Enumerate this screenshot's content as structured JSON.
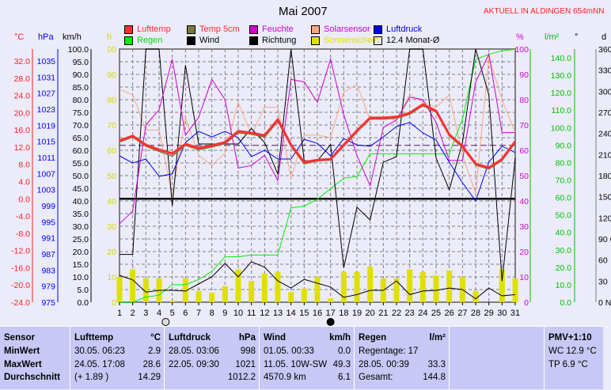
{
  "header": {
    "title": "Mai 2007",
    "station": "AKTUELL IN ALDINGEN 654mNN"
  },
  "legend": [
    {
      "label": "Lufttemp",
      "color": "#ff3030",
      "text_color": "#ff3030"
    },
    {
      "label": "Temp 5cm",
      "color": "#7a7a40",
      "text_color": "#ff3030"
    },
    {
      "label": "Feuchte",
      "color": "#d000d0",
      "text_color": "#d000d0"
    },
    {
      "label": "Solarsensor",
      "color": "#f8a880",
      "text_color": "#d000d0"
    },
    {
      "label": "Luftdruck",
      "color": "#0000f0",
      "text_color": "#0000f0"
    },
    {
      "label": "Regen",
      "color": "#00f000",
      "text_color": "#00e000"
    },
    {
      "label": "Wind",
      "color": "#000000",
      "text_color": "#000000"
    },
    {
      "label": "Richtung",
      "color": "#000000",
      "text_color": "#000000"
    },
    {
      "label": "Sonnenschein",
      "color": "#e0e000",
      "text_color": "#e0e000"
    },
    {
      "label": "12.4 Monat-Ø",
      "color": "none",
      "text_color": "#000000"
    }
  ],
  "axes": {
    "temp": {
      "unit": "°C",
      "color": "#ff2020",
      "ticks": [
        "32.0",
        "28.0",
        "24.0",
        "20.0",
        "16.0",
        "12.0",
        "8.0",
        "4.0",
        "0.0",
        "-4.0",
        "-8.0",
        "-12.0",
        "-16.0",
        "-20.0",
        "-24.0"
      ]
    },
    "pressure": {
      "unit": "hPa",
      "color": "#0000ff",
      "ticks": [
        "1035",
        "1031",
        "1027",
        "1023",
        "1019",
        "1015",
        "1011",
        "1007",
        "1003",
        "999",
        "995",
        "991",
        "987",
        "983",
        "979",
        "975"
      ]
    },
    "wind": {
      "unit": "km/h",
      "color": "#000000",
      "ticks": [
        "100.0",
        "95.0",
        "90.0",
        "85.0",
        "80.0",
        "75.0",
        "70.0",
        "65.0",
        "60.0",
        "55.0",
        "50.0",
        "45.0",
        "40.0",
        "35.0",
        "30.0",
        "25.0",
        "20.0",
        "15.0",
        "10.0",
        "5.0",
        "0.0"
      ]
    },
    "sun": {
      "unit": "h",
      "color": "#d8d800",
      "ticks": [
        "100",
        "90",
        "80",
        "70",
        "60",
        "50",
        "40",
        "30",
        "20",
        "10",
        "0"
      ]
    },
    "humidity": {
      "unit": "%",
      "color": "#d000d0",
      "ticks": [
        "100",
        "90",
        "80",
        "70",
        "60",
        "50",
        "40",
        "30",
        "20",
        "10",
        "0"
      ]
    },
    "rain": {
      "unit": "l/m²",
      "color": "#00c000",
      "ticks": [
        "140.0",
        "130.0",
        "120.0",
        "110.0",
        "100.0",
        "90.0",
        "80.0",
        "70.0",
        "60.0",
        "50.0",
        "40.0",
        "30.0",
        "20.0",
        "10.0",
        "0.0"
      ]
    },
    "direction": {
      "unit": "°",
      "unit2": "d",
      "color": "#000000",
      "ticks": [
        "360 N",
        "330",
        "300",
        "270 W",
        "240",
        "210",
        "180 S",
        "150",
        "120",
        "90 O",
        "60",
        "30",
        "0 N"
      ]
    }
  },
  "moon": {
    "full_day": 3,
    "new_day": 17
  },
  "chart_data": {
    "type": "line",
    "title": "Mai 2007",
    "x": [
      1,
      2,
      3,
      4,
      5,
      6,
      7,
      8,
      9,
      10,
      11,
      12,
      13,
      14,
      15,
      16,
      17,
      18,
      19,
      20,
      21,
      22,
      23,
      24,
      25,
      26,
      27,
      28,
      29,
      30,
      31
    ],
    "month_avg_temp": 12.4,
    "series": [
      {
        "name": "Lufttemp",
        "axis": "temp",
        "values": [
          13.5,
          14.6,
          12.5,
          11.4,
          10.5,
          12.7,
          11.8,
          12.4,
          13.1,
          15.7,
          15.3,
          14.7,
          18.4,
          12.5,
          8.5,
          9.0,
          9.2,
          12.5,
          15.8,
          18.8,
          18.8,
          19.0,
          19.9,
          21.9,
          20.4,
          14.9,
          12.2,
          8.1,
          7.2,
          9.2,
          13.3
        ]
      },
      {
        "name": "Temp 5cm",
        "axis": "temp",
        "values": [
          13.2,
          14.3,
          12.2,
          11.0,
          9.9,
          12.4,
          11.4,
          12.0,
          12.8,
          15.3,
          15.0,
          14.3,
          18.0,
          12.2,
          8.1,
          8.8,
          9.0,
          12.2,
          15.5,
          18.5,
          18.5,
          18.7,
          19.6,
          21.6,
          20.1,
          14.6,
          11.9,
          7.8,
          6.9,
          8.9,
          13.0
        ]
      },
      {
        "name": "Feuchte",
        "axis": "humidity",
        "values": [
          31,
          36,
          70,
          76,
          96,
          66,
          73,
          88,
          80,
          53,
          54,
          58,
          48,
          88,
          87,
          79,
          96,
          74,
          58,
          46,
          69,
          72,
          81,
          80,
          71,
          56,
          56,
          87,
          98,
          67,
          67
        ]
      },
      {
        "name": "Solarsensor",
        "axis": "humidity",
        "values": [
          84,
          82,
          68,
          68,
          42,
          73,
          58,
          54,
          59,
          79,
          66,
          77,
          77,
          49,
          66,
          66,
          65,
          83,
          86,
          72,
          73,
          72,
          82,
          79,
          77,
          82,
          58,
          43,
          97,
          80,
          67
        ]
      },
      {
        "name": "Luftdruck",
        "axis": "pressure",
        "values": [
          1011.4,
          1009.6,
          1010.6,
          1006.3,
          1006.9,
          1014.7,
          1017.5,
          1016.1,
          1017.5,
          1015.9,
          1011.2,
          1012.8,
          1010.6,
          1010.6,
          1015.5,
          1014.5,
          1011.4,
          1015.7,
          1014.1,
          1013.8,
          1016.1,
          1018.7,
          1019.7,
          1017.1,
          1015.3,
          1009.8,
          1004.7,
          1000.2,
          1009.8,
          1013.8,
          1012.2
        ]
      },
      {
        "name": "Regen",
        "axis": "rain",
        "values": [
          0,
          0,
          3,
          4,
          10,
          10,
          13,
          17.7,
          26,
          26,
          27,
          27,
          27,
          54,
          55,
          59,
          65,
          71,
          72,
          85,
          85,
          85,
          85,
          85,
          85,
          85,
          105,
          139,
          142,
          144,
          144.8
        ]
      },
      {
        "name": "Wind",
        "axis": "wind",
        "values": [
          10.6,
          8.8,
          4.0,
          4.7,
          4.7,
          4.4,
          7.2,
          10.0,
          15.3,
          10.0,
          16.0,
          13.8,
          8.4,
          5.6,
          9.0,
          7.5,
          6.0,
          1.9,
          3.0,
          4.7,
          4.7,
          8.4,
          3.0,
          4.4,
          4.7,
          5.6,
          5.0,
          1.3,
          5.6,
          2.5,
          3.0
        ]
      },
      {
        "name": "Richtung",
        "axis": "direction",
        "values": [
          68,
          68,
          360,
          360,
          137,
          337,
          225,
          225,
          225,
          225,
          247,
          227,
          182,
          360,
          201,
          201,
          224,
          49,
          135,
          117,
          199,
          207,
          360,
          360,
          205,
          160,
          227,
          360,
          295,
          30,
          205
        ]
      },
      {
        "name": "Sonnenschein",
        "axis": "sun",
        "type": "bar",
        "values": [
          10,
          13,
          9.4,
          9.4,
          0.6,
          9.4,
          4.4,
          3.8,
          6.3,
          13,
          8.4,
          11.3,
          12,
          4,
          5.3,
          10,
          1.5,
          12,
          12,
          14,
          9.4,
          9.4,
          13,
          12,
          10.6,
          12.5,
          10,
          4.4,
          0,
          13,
          9.4
        ]
      }
    ]
  },
  "table": {
    "columns": [
      {
        "title": "Sensor",
        "unit": "",
        "rows": [
          {
            "a": "MinWert",
            "b": ""
          },
          {
            "a": "MaxWert",
            "b": ""
          },
          {
            "a": "Durchschnitt",
            "b": ""
          }
        ]
      },
      {
        "title": "Lufttemp",
        "unit": "°C",
        "rows": [
          {
            "a": "30.05.  06:23",
            "b": "2.9"
          },
          {
            "a": "24.05.  17:08",
            "b": "28.6"
          },
          {
            "a": "(+ 1.89 )",
            "b": "14.29"
          }
        ]
      },
      {
        "title": "Luftdruck",
        "unit": "hPa",
        "rows": [
          {
            "a": "28.05.  03:06",
            "b": "998"
          },
          {
            "a": "22.05.  09:30",
            "b": "1021"
          },
          {
            "a": "",
            "b": "1012.2"
          }
        ]
      },
      {
        "title": "Wind",
        "unit": "km/h",
        "rows": [
          {
            "a": "01.05.  00:33",
            "b": "0.0"
          },
          {
            "a": "11.05.  10W-SW",
            "b": "49.3"
          },
          {
            "a": "4570.9 km",
            "b": "6.1"
          }
        ]
      },
      {
        "title": "Regen",
        "unit": "l/m²",
        "rows": [
          {
            "a": "Regentage: 17",
            "b": ""
          },
          {
            "a": "28.05.  00:39",
            "b": "33.3"
          },
          {
            "a": "Gesamt:",
            "b": "144.8"
          }
        ]
      },
      {
        "title": "",
        "unit": "",
        "rows": [
          {
            "a": "",
            "b": ""
          },
          {
            "a": "",
            "b": ""
          },
          {
            "a": "",
            "b": ""
          }
        ]
      },
      {
        "title": "PMV+1:10",
        "unit": "",
        "rows": [
          {
            "a": "WC 12.9 °C",
            "b": ""
          },
          {
            "a": "TP 6.9 °C",
            "b": ""
          },
          {
            "a": "",
            "b": ""
          }
        ]
      }
    ]
  }
}
